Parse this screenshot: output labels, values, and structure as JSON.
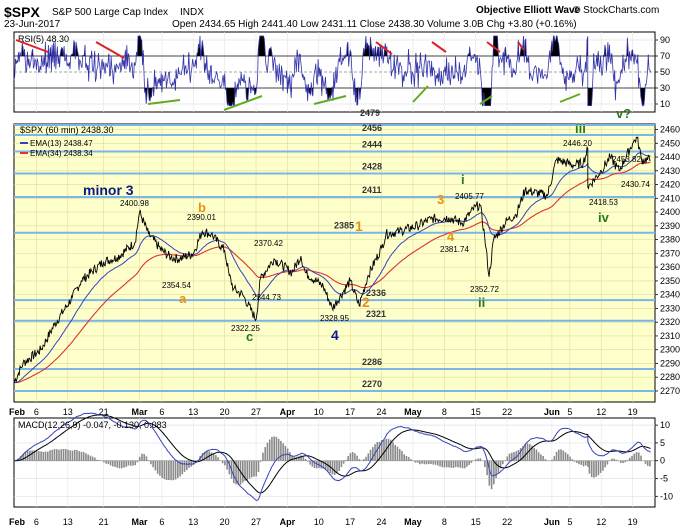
{
  "header": {
    "symbol": "$SPX",
    "name": "S&P 500 Large Cap Index",
    "exchange": "INDX",
    "date": "23-Jun-2017",
    "ohlc": "Open 2434.65  High 2441.40  Low 2431.11  Close 2438.30  Volume 3.0B  Chg +3.80 (+0.16%)",
    "source": "Objective Elliott Wave",
    "copyright": "© StockCharts.com"
  },
  "rsi": {
    "label": "RSI(5) 48.30",
    "ticks": [
      "90",
      "70",
      "50",
      "30",
      "10"
    ],
    "ylim": [
      0,
      100
    ]
  },
  "price": {
    "legend": "$SPX (60 min) 2438.30",
    "ema13": "EMA(13) 2438.47",
    "ema34": "EMA(34) 2438.34",
    "ticks": [
      "2460",
      "2450",
      "2440",
      "2430",
      "2420",
      "2410",
      "2400",
      "2390",
      "2380",
      "2370",
      "2360",
      "2350",
      "2340",
      "2330",
      "2320",
      "2310",
      "2300",
      "2290",
      "2280",
      "2270"
    ],
    "ylim": [
      2262,
      2464
    ]
  },
  "macd": {
    "label": "MACD(12,26,9) -0.047, -0.130, 0.083",
    "ticks": [
      "10",
      "5",
      "0",
      "-5",
      "-10"
    ],
    "ylim": [
      -13,
      12
    ]
  },
  "x_axis": {
    "labels": [
      "Feb",
      "6",
      "13",
      "21",
      "Mar",
      "6",
      "13",
      "20",
      "27",
      "Apr",
      "10",
      "17",
      "24",
      "May",
      "8",
      "15",
      "22",
      "Jun",
      "5",
      "12",
      "19"
    ]
  },
  "colors": {
    "price_bg": "#ffffcc",
    "hline": "#7ab6e8",
    "rsi_line": "#3333aa",
    "ema13": "#3344bb",
    "ema34": "#dd3333",
    "navy": "#0a1a8a",
    "orange": "#e89010",
    "green": "#2a7a1a"
  },
  "chart_data": {
    "type": "line",
    "title": "$SPX S&P 500 Large Cap Index INDX",
    "series": [
      {
        "name": "$SPX (60 min)",
        "points": [
          [
            "Feb 1",
            2276
          ],
          [
            "Feb 3",
            2290
          ],
          [
            "Feb 7",
            2300
          ],
          [
            "Feb 10",
            2318
          ],
          [
            "Feb 14",
            2338
          ],
          [
            "Feb 16",
            2350
          ],
          [
            "Feb 21",
            2364
          ],
          [
            "Feb 24",
            2367
          ],
          [
            "Feb 28",
            2378
          ],
          [
            "Mar 1",
            2400
          ],
          [
            "Mar 3",
            2384
          ],
          [
            "Mar 6",
            2372
          ],
          [
            "Mar 8",
            2367
          ],
          [
            "Mar 10",
            2366
          ],
          [
            "Mar 13",
            2370
          ],
          [
            "Mar 15",
            2386
          ],
          [
            "Mar 17",
            2384
          ],
          [
            "Mar 20",
            2372
          ],
          [
            "Mar 21",
            2354
          ],
          [
            "Mar 22",
            2344
          ],
          [
            "Mar 24",
            2340
          ],
          [
            "Mar 27",
            2322
          ],
          [
            "Mar 28",
            2352
          ],
          [
            "Mar 31",
            2366
          ],
          [
            "Apr 4",
            2356
          ],
          [
            "Apr 6",
            2368
          ],
          [
            "Apr 7",
            2356
          ],
          [
            "Apr 11",
            2346
          ],
          [
            "Apr 13",
            2330
          ],
          [
            "Apr 17",
            2350
          ],
          [
            "Apr 19",
            2332
          ],
          [
            "Apr 21",
            2354
          ],
          [
            "Apr 24",
            2374
          ],
          [
            "Apr 25",
            2384
          ],
          [
            "Apr 28",
            2386
          ],
          [
            "May 2",
            2390
          ],
          [
            "May 5",
            2395
          ],
          [
            "May 9",
            2396
          ],
          [
            "May 12",
            2392
          ],
          [
            "May 15",
            2404
          ],
          [
            "May 16",
            2405
          ],
          [
            "May 17",
            2382
          ],
          [
            "May 18",
            2353
          ],
          [
            "May 19",
            2380
          ],
          [
            "May 22",
            2394
          ],
          [
            "May 24",
            2398
          ],
          [
            "May 26",
            2416
          ],
          [
            "May 31",
            2412
          ],
          [
            "Jun 2",
            2438
          ],
          [
            "Jun 6",
            2434
          ],
          [
            "Jun 8",
            2436
          ],
          [
            "Jun 9",
            2446
          ],
          [
            "Jun 9",
            2418
          ],
          [
            "Jun 12",
            2430
          ],
          [
            "Jun 14",
            2440
          ],
          [
            "Jun 16",
            2430
          ],
          [
            "Jun 19",
            2450
          ],
          [
            "Jun 20",
            2454
          ],
          [
            "Jun 21",
            2438
          ],
          [
            "Jun 23",
            2438
          ]
        ]
      }
    ],
    "levels": [
      "2479",
      "2456",
      "2444",
      "2428",
      "2411",
      "2385",
      "2336",
      "2321",
      "2286",
      "2270"
    ],
    "price_labels": [
      "2400.98",
      "2390.01",
      "2354.54",
      "2370.42",
      "2344.73",
      "2322.25",
      "2328.95",
      "2405.77",
      "2381.74",
      "2352.72",
      "2446.20",
      "2453.82",
      "2430.74",
      "2418.53"
    ],
    "waves": [
      "minor 3",
      "a",
      "b",
      "c",
      "4",
      "1",
      "2",
      "3",
      "4",
      "i",
      "ii",
      "iii",
      "iv",
      "v?"
    ],
    "ylabel": "",
    "xlabel": ""
  }
}
